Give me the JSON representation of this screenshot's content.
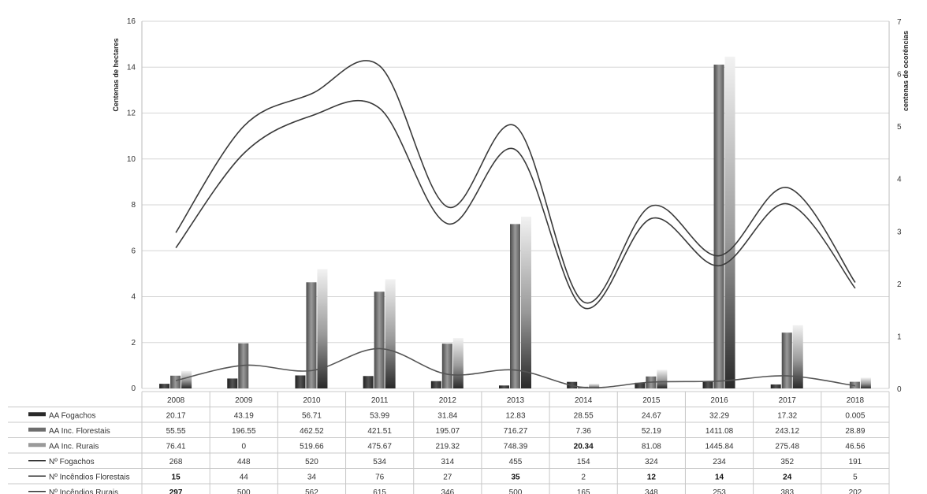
{
  "chart_data": {
    "type": "bar",
    "categories": [
      "2008",
      "2009",
      "2010",
      "2011",
      "2012",
      "2013",
      "2014",
      "2015",
      "2016",
      "2017",
      "2018"
    ],
    "y_left": {
      "label": "Centenas de hectares",
      "ylim": [
        0,
        16
      ],
      "ticks": [
        "0",
        "2",
        "4",
        "6",
        "8",
        "10",
        "12",
        "14",
        "16"
      ]
    },
    "y_right": {
      "label": "centenas de ocorências",
      "ylim": [
        0,
        7
      ],
      "ticks": [
        "0",
        "1",
        "2",
        "3",
        "4",
        "5",
        "6",
        "7"
      ]
    },
    "grid": true,
    "legend": "table-bottom",
    "bar_series": [
      {
        "name": "AA Fogachos",
        "values": [
          0.2017,
          0.4319,
          0.5671,
          0.5399,
          0.3184,
          0.1283,
          0.2855,
          0.2467,
          0.3229,
          0.1732,
          5e-05
        ],
        "color": "#3a3a3a"
      },
      {
        "name": "AA Inc. Florestais",
        "values": [
          0.5555,
          1.9655,
          4.6252,
          4.2151,
          1.9507,
          7.1627,
          0.0736,
          0.5219,
          14.1108,
          2.4312,
          0.2889
        ],
        "color": "#6e6e6e"
      },
      {
        "name": "AA Inc. Rurais",
        "values": [
          0.7641,
          0,
          5.1966,
          4.7567,
          2.1932,
          7.4839,
          0.2034,
          0.8108,
          14.4584,
          2.7548,
          0.4656
        ],
        "color": "#a8a8a8"
      }
    ],
    "line_series": [
      {
        "name": "Nº Fogachos",
        "values": [
          2.68,
          4.48,
          5.2,
          5.34,
          3.14,
          4.55,
          1.54,
          3.24,
          2.34,
          3.52,
          1.91
        ]
      },
      {
        "name": "Nº Incêndios Florestais",
        "values": [
          0.15,
          0.44,
          0.34,
          0.76,
          0.27,
          0.35,
          0.02,
          0.12,
          0.14,
          0.24,
          0.05
        ]
      },
      {
        "name": "Nº Incêndios Rurais",
        "values": [
          2.97,
          5.0,
          5.62,
          6.15,
          3.46,
          5.0,
          1.65,
          3.48,
          2.53,
          3.83,
          2.02
        ]
      }
    ],
    "table": [
      {
        "label": "AA Fogachos",
        "values": [
          "20.17",
          "43.19",
          "56.71",
          "53.99",
          "31.84",
          "12.83",
          "28.55",
          "24.67",
          "32.29",
          "17.32",
          "0.005"
        ]
      },
      {
        "label": "AA Inc. Florestais",
        "values": [
          "55.55",
          "196.55",
          "462.52",
          "421.51",
          "195.07",
          "716.27",
          "7.36",
          "52.19",
          "1411.08",
          "243.12",
          "28.89"
        ]
      },
      {
        "label": "AA Inc. Rurais",
        "values": [
          "76.41",
          "0",
          "519.66",
          "475.67",
          "219.32",
          "748.39",
          "20.34",
          "81.08",
          "1445.84",
          "275.48",
          "46.56"
        ]
      },
      {
        "label": "Nº Fogachos",
        "values": [
          "268",
          "448",
          "520",
          "534",
          "314",
          "455",
          "154",
          "324",
          "234",
          "352",
          "191"
        ]
      },
      {
        "label": "Nº Incêndios Florestais",
        "values": [
          "15",
          "44",
          "34",
          "76",
          "27",
          "35",
          "2",
          "12",
          "14",
          "24",
          "5"
        ]
      },
      {
        "label": "Nº Incêndios Rurais",
        "values": [
          "297",
          "500",
          "562",
          "615",
          "346",
          "500",
          "165",
          "348",
          "253",
          "383",
          "202"
        ]
      }
    ],
    "bold_cells": [
      [
        2,
        6
      ],
      [
        4,
        0
      ],
      [
        4,
        5
      ],
      [
        4,
        7
      ],
      [
        4,
        8
      ],
      [
        4,
        9
      ],
      [
        5,
        0
      ]
    ]
  }
}
